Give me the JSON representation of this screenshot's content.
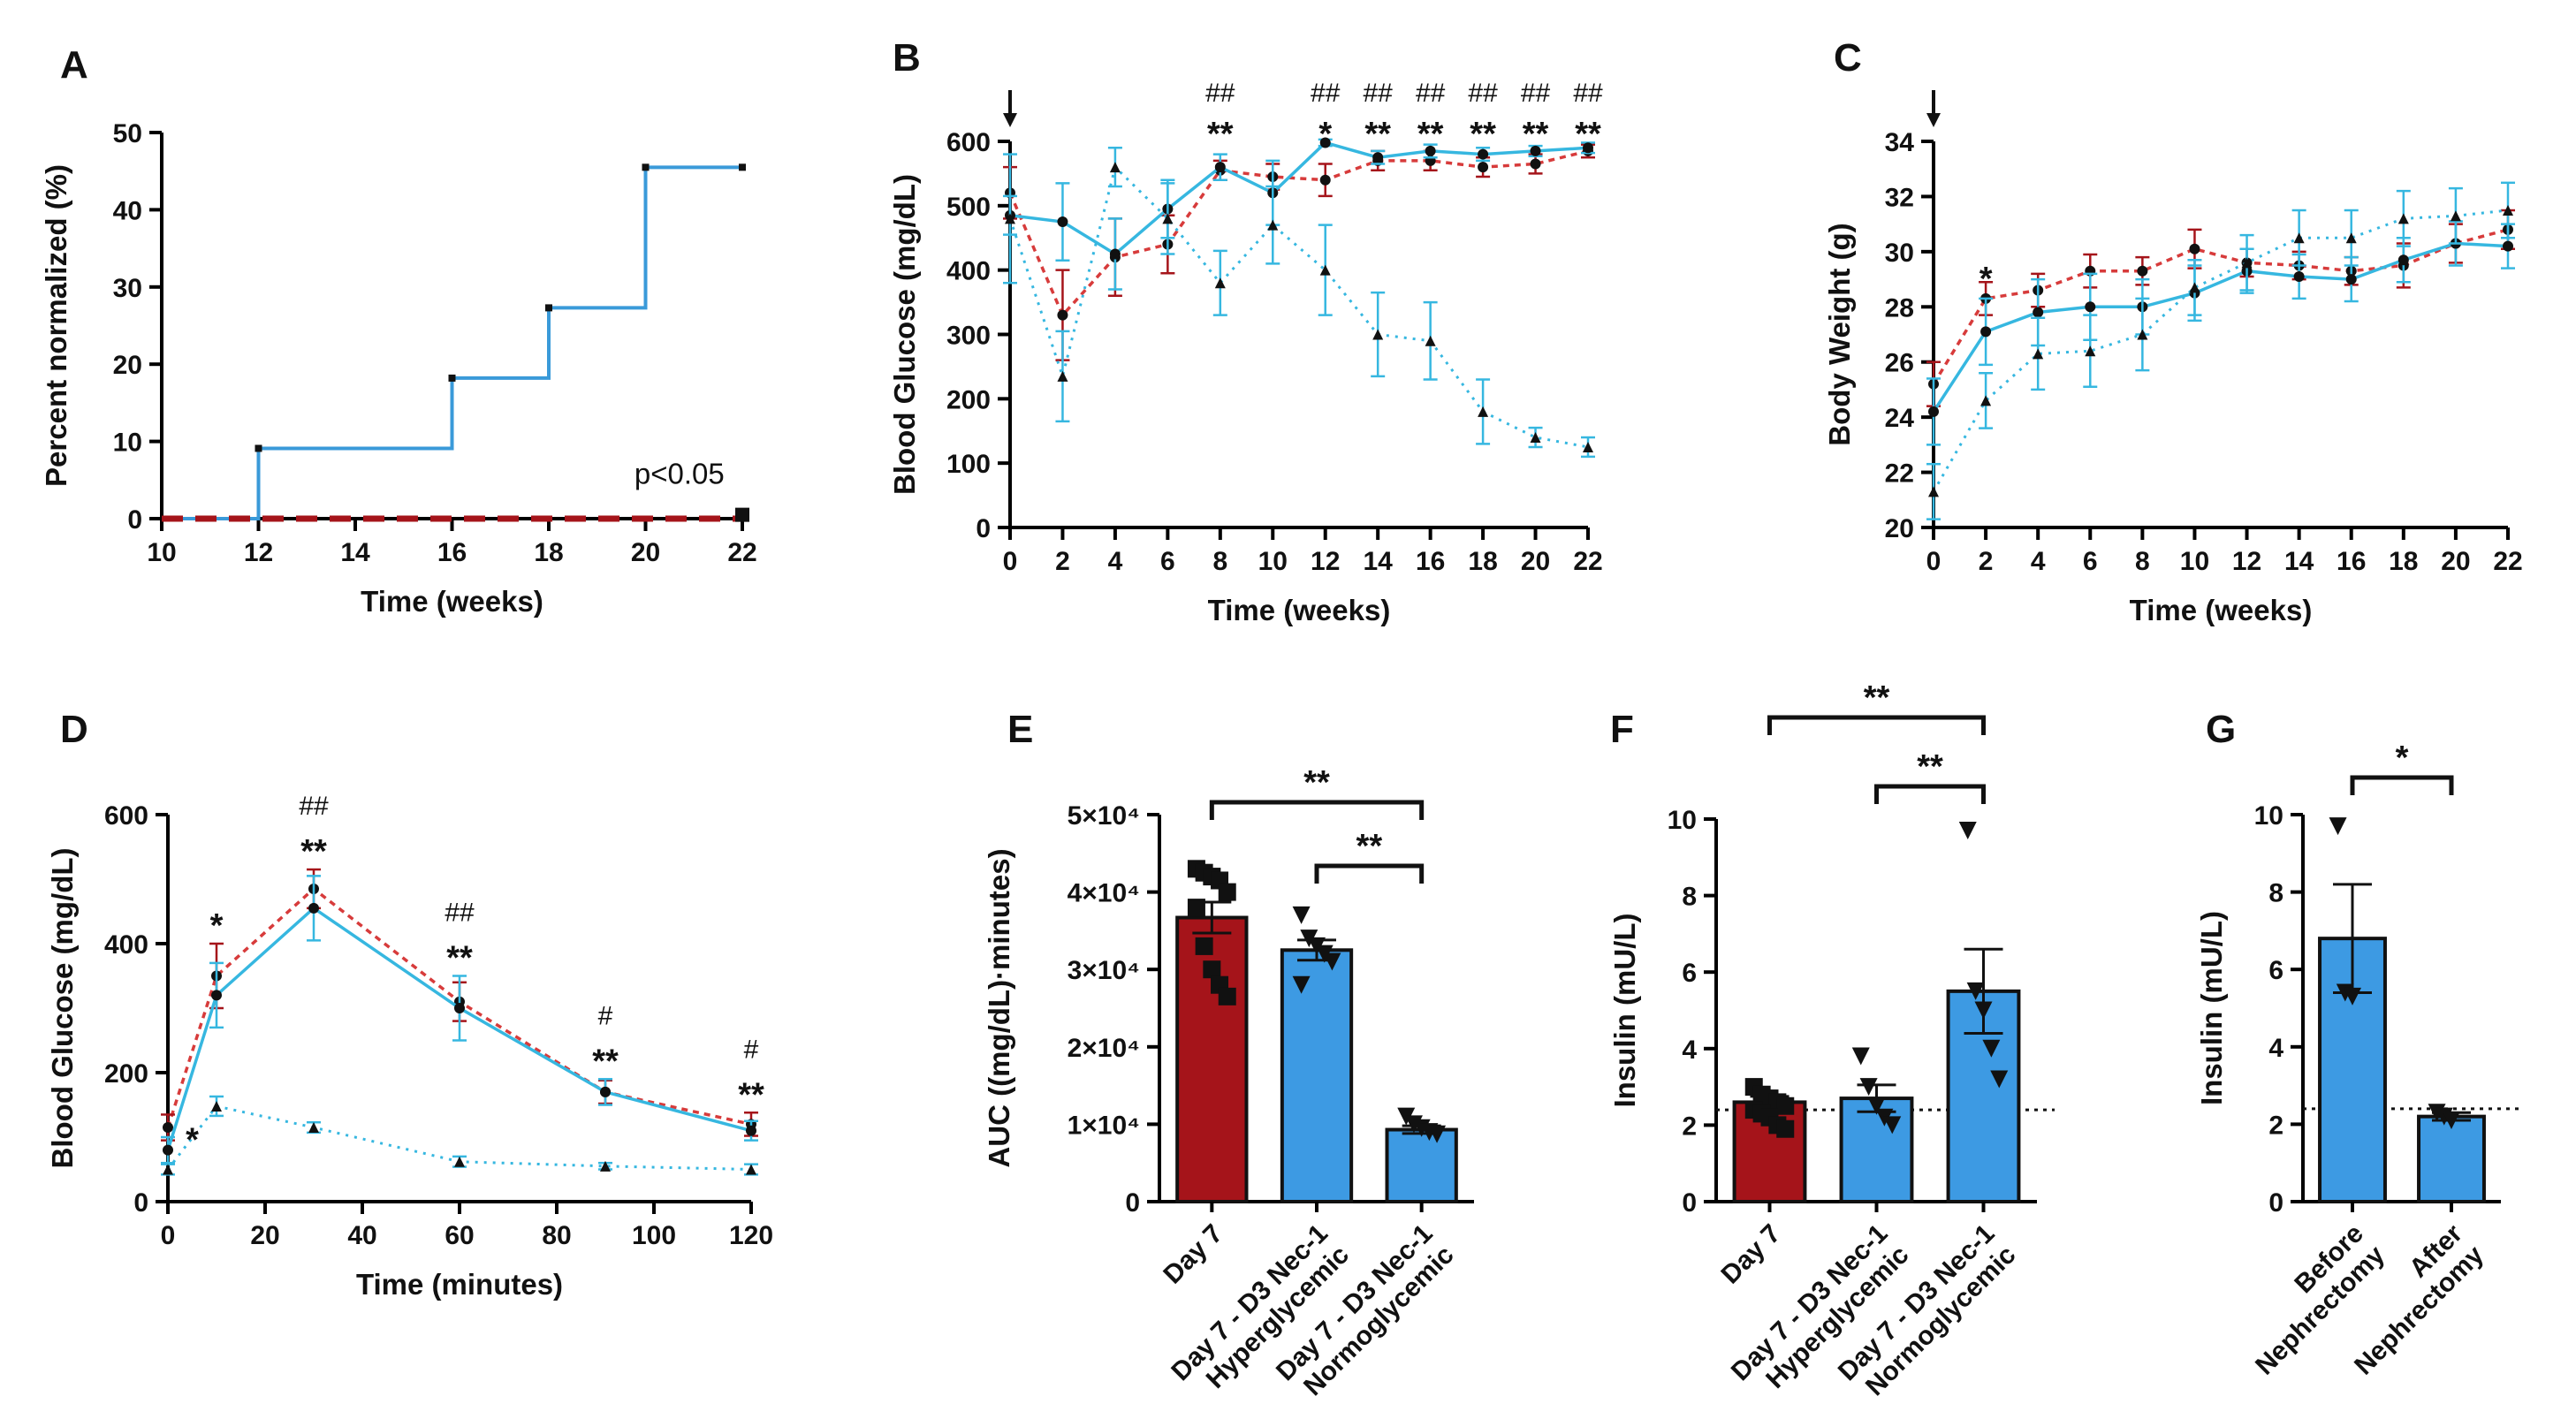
{
  "colors": {
    "red": "#a5141a",
    "red_dash": "#d73b3b",
    "blue": "#3a9ad9",
    "blue_bar": "#3d9ae3",
    "cyan": "#36b7e0",
    "black": "#111111"
  },
  "chart_data": [
    {
      "id": "A",
      "type": "line",
      "label": "A",
      "xlabel": "Time (weeks)",
      "ylabel": "Percent normalized (%)",
      "xlim": [
        10,
        22
      ],
      "ylim": [
        0,
        50
      ],
      "xticks": [
        "10",
        "12",
        "14",
        "16",
        "18",
        "20",
        "22"
      ],
      "yticks": [
        "0",
        "10",
        "20",
        "30",
        "40",
        "50"
      ],
      "annotations": [
        "p<0.05"
      ],
      "series": [
        {
          "name": "Day 7 - D3 Nec-1",
          "style": "step",
          "x": [
            10,
            12,
            16,
            18,
            20,
            22
          ],
          "y": [
            0,
            9.1,
            18.2,
            27.3,
            45.5,
            45.5
          ]
        },
        {
          "name": "Day 7",
          "style": "dashed",
          "x": [
            10,
            22
          ],
          "y": [
            0,
            0
          ]
        }
      ]
    },
    {
      "id": "B",
      "type": "line",
      "label": "B",
      "xlabel": "Time (weeks)",
      "ylabel": "Blood Glucose (mg/dL)",
      "xlim": [
        0,
        22
      ],
      "ylim": [
        0,
        600
      ],
      "xticks": [
        "0",
        "2",
        "4",
        "6",
        "8",
        "10",
        "12",
        "14",
        "16",
        "18",
        "20",
        "22"
      ],
      "yticks": [
        "0",
        "100",
        "200",
        "300",
        "400",
        "500",
        "600"
      ],
      "arrow_at": "0",
      "significance": [
        {
          "x": 8,
          "star": "**",
          "hash": "##"
        },
        {
          "x": 12,
          "star": "*",
          "hash": "##"
        },
        {
          "x": 14,
          "star": "**",
          "hash": "##"
        },
        {
          "x": 16,
          "star": "**",
          "hash": "##"
        },
        {
          "x": 18,
          "star": "**",
          "hash": "##"
        },
        {
          "x": 20,
          "star": "**",
          "hash": "##"
        },
        {
          "x": 22,
          "star": "**",
          "hash": "##"
        }
      ],
      "x": [
        0,
        2,
        4,
        6,
        8,
        10,
        12,
        14,
        16,
        18,
        20,
        22
      ],
      "series": [
        {
          "name": "Day 7",
          "values": [
            520,
            330,
            420,
            440,
            555,
            545,
            540,
            570,
            570,
            560,
            565,
            585
          ],
          "err": [
            40,
            70,
            60,
            45,
            15,
            20,
            25,
            15,
            15,
            15,
            15,
            10
          ]
        },
        {
          "name": "Day 7 - D3 Nec-1 Hyperglycemic",
          "values": [
            485,
            475,
            425,
            495,
            560,
            520,
            598,
            575,
            585,
            580,
            585,
            590
          ],
          "err": [
            30,
            60,
            55,
            45,
            20,
            50,
            5,
            10,
            10,
            10,
            8,
            8
          ]
        },
        {
          "name": "Day 7 - D3 Nec-1 Normoglycemic",
          "values": [
            480,
            235,
            560,
            480,
            380,
            470,
            400,
            300,
            290,
            180,
            140,
            125
          ],
          "err": [
            100,
            70,
            30,
            55,
            50,
            60,
            70,
            65,
            60,
            50,
            15,
            15
          ]
        }
      ]
    },
    {
      "id": "C",
      "type": "line",
      "label": "C",
      "xlabel": "Time (weeks)",
      "ylabel": "Body  Weight (g)",
      "xlim": [
        0,
        22
      ],
      "ylim": [
        20,
        34
      ],
      "xticks": [
        "0",
        "2",
        "4",
        "6",
        "8",
        "10",
        "12",
        "14",
        "16",
        "18",
        "20",
        "22"
      ],
      "yticks": [
        "20",
        "22",
        "24",
        "26",
        "28",
        "30",
        "32",
        "34"
      ],
      "arrow_at": "0",
      "significance": [
        {
          "x": 2,
          "star": "*",
          "hash": ""
        }
      ],
      "x": [
        0,
        2,
        4,
        6,
        8,
        10,
        12,
        14,
        16,
        18,
        20,
        22
      ],
      "series": [
        {
          "name": "Day 7",
          "values": [
            25.2,
            28.3,
            28.6,
            29.3,
            29.3,
            30.1,
            29.6,
            29.5,
            29.3,
            29.5,
            30.3,
            30.8
          ],
          "err": [
            0.8,
            0.6,
            0.6,
            0.6,
            0.5,
            0.7,
            0.5,
            0.5,
            0.5,
            0.8,
            0.7,
            0.7
          ]
        },
        {
          "name": "Day 7 - D3 Nec-1 Hyperglycemic",
          "values": [
            24.2,
            27.1,
            27.8,
            28.0,
            28.0,
            28.5,
            29.3,
            29.1,
            29.0,
            29.7,
            30.3,
            30.2
          ],
          "err": [
            1.2,
            1.2,
            1.2,
            1.2,
            1.0,
            1.0,
            0.8,
            0.8,
            0.8,
            0.8,
            0.8,
            0.8
          ]
        },
        {
          "name": "Day 7 - D3 Nec-1 Normoglycemic",
          "values": [
            21.3,
            24.6,
            26.3,
            26.4,
            27.0,
            28.7,
            29.6,
            30.5,
            30.5,
            31.2,
            31.3,
            31.5
          ],
          "err": [
            1.0,
            1.0,
            1.3,
            1.3,
            1.3,
            1.0,
            1.0,
            1.0,
            1.0,
            1.0,
            1.0,
            1.0
          ]
        }
      ]
    },
    {
      "id": "D",
      "type": "line",
      "label": "D",
      "xlabel": "Time (minutes)",
      "ylabel": "Blood Glucose (mg/dL)",
      "xlim": [
        0,
        120
      ],
      "ylim": [
        0,
        600
      ],
      "xticks": [
        "0",
        "20",
        "40",
        "60",
        "80",
        "100",
        "120"
      ],
      "yticks": [
        "0",
        "200",
        "400",
        "600"
      ],
      "significance": [
        {
          "x": 5,
          "star": "*",
          "hash": "",
          "placement": "low"
        },
        {
          "x": 10,
          "star": "*",
          "hash": ""
        },
        {
          "x": 30,
          "star": "**",
          "hash": "##"
        },
        {
          "x": 60,
          "star": "**",
          "hash": "##"
        },
        {
          "x": 90,
          "star": "**",
          "hash": "#"
        },
        {
          "x": 120,
          "star": "**",
          "hash": "#"
        }
      ],
      "x": [
        0,
        10,
        30,
        60,
        90,
        120
      ],
      "series": [
        {
          "name": "Day 7",
          "values": [
            115,
            350,
            485,
            310,
            170,
            120
          ],
          "err": [
            20,
            50,
            30,
            30,
            18,
            18
          ]
        },
        {
          "name": "Day 7 - D3 Nec-1 Hyperglycemic",
          "values": [
            80,
            320,
            455,
            300,
            170,
            110
          ],
          "err": [
            20,
            50,
            50,
            50,
            20,
            15
          ]
        },
        {
          "name": "Day 7 - D3 Nec-1 Normoglycemic",
          "values": [
            50,
            148,
            115,
            62,
            55,
            50
          ],
          "err": [
            8,
            15,
            8,
            8,
            5,
            8
          ]
        }
      ]
    },
    {
      "id": "E",
      "type": "bar",
      "label": "E",
      "ylabel": "AUC ((mg/dL)·minutes)",
      "ylim": [
        0,
        50000
      ],
      "yticks": [
        "0",
        "1×10⁴",
        "2×10⁴",
        "3×10⁴",
        "4×10⁴",
        "5×10⁴"
      ],
      "categories": [
        "Day 7",
        "Day 7 - D3 Nec-1 Hyperglycemic",
        "Day 7 - D3 Nec-1 Normoglycemic"
      ],
      "category_lines": [
        [
          "Day 7"
        ],
        [
          "Day 7 - D3 Nec-1",
          "Hyperglycemic"
        ],
        [
          "Day 7 - D3 Nec-1",
          "Normoglycemic"
        ]
      ],
      "values": [
        36700,
        32500,
        9300
      ],
      "err": [
        2000,
        1300,
        500
      ],
      "points": [
        [
          43000,
          42500,
          42000,
          41500,
          40000,
          38000,
          33000,
          30000,
          28000,
          26500
        ],
        [
          37000,
          34000,
          33000,
          32000,
          31000,
          28000
        ],
        [
          11000,
          10000,
          9500,
          9000,
          8700
        ]
      ],
      "markers": [
        "square",
        "triangle-down",
        "triangle-down"
      ],
      "significance": [
        {
          "from": 0,
          "to": 2,
          "label": "**"
        },
        {
          "from": 1,
          "to": 2,
          "label": "**"
        }
      ]
    },
    {
      "id": "F",
      "type": "bar",
      "label": "F",
      "ylabel": "Insulin (mU/L)",
      "ylim": [
        0,
        10
      ],
      "yticks": [
        "0",
        "2",
        "4",
        "6",
        "8",
        "10"
      ],
      "reference_line": 2.4,
      "categories": [
        "Day 7",
        "Day 7 - D3 Nec-1 Hyperglycemic",
        "Day 7 - D3 Nec-1 Normoglycemic"
      ],
      "category_lines": [
        [
          "Day 7"
        ],
        [
          "Day 7 - D3 Nec-1",
          "Hyperglycemic"
        ],
        [
          "Day 7 - D3 Nec-1",
          "Normoglycemic"
        ]
      ],
      "values": [
        2.6,
        2.7,
        5.5
      ],
      "err": [
        0.15,
        0.35,
        1.1
      ],
      "points": [
        [
          3.0,
          2.8,
          2.7,
          2.6,
          2.5,
          2.4,
          2.3,
          2.2,
          2.0,
          1.9
        ],
        [
          3.8,
          3.0,
          2.5,
          2.2,
          2.0
        ],
        [
          9.7,
          5.5,
          5.0,
          4.0,
          3.2
        ]
      ],
      "markers": [
        "square",
        "triangle-down",
        "triangle-down"
      ],
      "significance": [
        {
          "from": 0,
          "to": 2,
          "label": "**"
        },
        {
          "from": 1,
          "to": 2,
          "label": "**"
        }
      ]
    },
    {
      "id": "G",
      "type": "bar",
      "label": "G",
      "ylabel": "Insulin (mU/L)",
      "ylim": [
        0,
        10
      ],
      "yticks": [
        "0",
        "2",
        "4",
        "6",
        "8",
        "10"
      ],
      "reference_line": 2.4,
      "categories": [
        "Before Nephrectomy",
        "After Nephrectomy"
      ],
      "category_lines": [
        [
          "Before",
          "Nephrectomy"
        ],
        [
          "After",
          "Nephrectomy"
        ]
      ],
      "values": [
        6.8,
        2.2
      ],
      "err": [
        1.4,
        0.1
      ],
      "points": [
        [
          9.7,
          5.4,
          5.3
        ],
        [
          2.3,
          2.2,
          2.1
        ]
      ],
      "markers": [
        "triangle-down",
        "triangle-down"
      ],
      "significance": [
        {
          "from": 0,
          "to": 1,
          "label": "*"
        }
      ]
    }
  ]
}
